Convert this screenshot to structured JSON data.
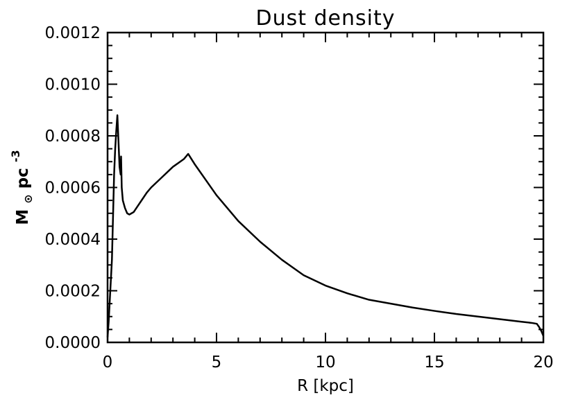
{
  "chart_data": {
    "type": "line",
    "title": "Dust density",
    "xlabel": "R [kpc]",
    "ylabel": {
      "base": "M",
      "sub": "⊙",
      "unit": " pc",
      "sup": "-3"
    },
    "xlim": [
      0,
      20
    ],
    "ylim": [
      0,
      0.0012
    ],
    "xticks": [
      0,
      5,
      10,
      15,
      20
    ],
    "xtick_labels": [
      "0",
      "5",
      "10",
      "15",
      "20"
    ],
    "yticks": [
      0,
      0.0002,
      0.0004,
      0.0006,
      0.0008,
      0.001,
      0.0012
    ],
    "ytick_labels": [
      "0.0000",
      "0.0002",
      "0.0004",
      "0.0006",
      "0.0008",
      "0.0010",
      "0.0012"
    ],
    "grid": false,
    "series": [
      {
        "x": [
          0.0,
          0.05,
          0.1,
          0.2,
          0.3,
          0.35,
          0.4,
          0.45,
          0.5,
          0.55,
          0.6,
          0.62,
          0.65,
          0.7,
          0.8,
          0.9,
          1.0,
          1.1,
          1.2,
          1.4,
          1.6,
          1.8,
          2.0,
          2.5,
          3.0,
          3.5,
          3.7,
          4.0,
          4.5,
          5.0,
          5.5,
          6.0,
          7.0,
          8.0,
          9.0,
          10.0,
          11.0,
          12.0,
          13.0,
          14.0,
          15.0,
          16.0,
          17.0,
          18.0,
          19.0,
          19.5,
          19.7,
          19.8,
          19.9,
          20.0
        ],
        "y": [
          2e-05,
          8e-05,
          0.00016,
          0.00032,
          0.00065,
          0.00075,
          0.00082,
          0.00088,
          0.00078,
          0.00068,
          0.00065,
          0.00072,
          0.0006,
          0.00055,
          0.00052,
          0.0005,
          0.000495,
          0.0005,
          0.000505,
          0.00053,
          0.000555,
          0.00058,
          0.0006,
          0.00064,
          0.00068,
          0.00071,
          0.00073,
          0.00069,
          0.00063,
          0.00057,
          0.00052,
          0.00047,
          0.00039,
          0.00032,
          0.00026,
          0.00022,
          0.00019,
          0.000165,
          0.00015,
          0.000135,
          0.000122,
          0.00011,
          0.0001,
          9e-05,
          8e-05,
          7.5e-05,
          7.2e-05,
          6e-05,
          4.5e-05,
          2.5e-05
        ]
      }
    ]
  }
}
